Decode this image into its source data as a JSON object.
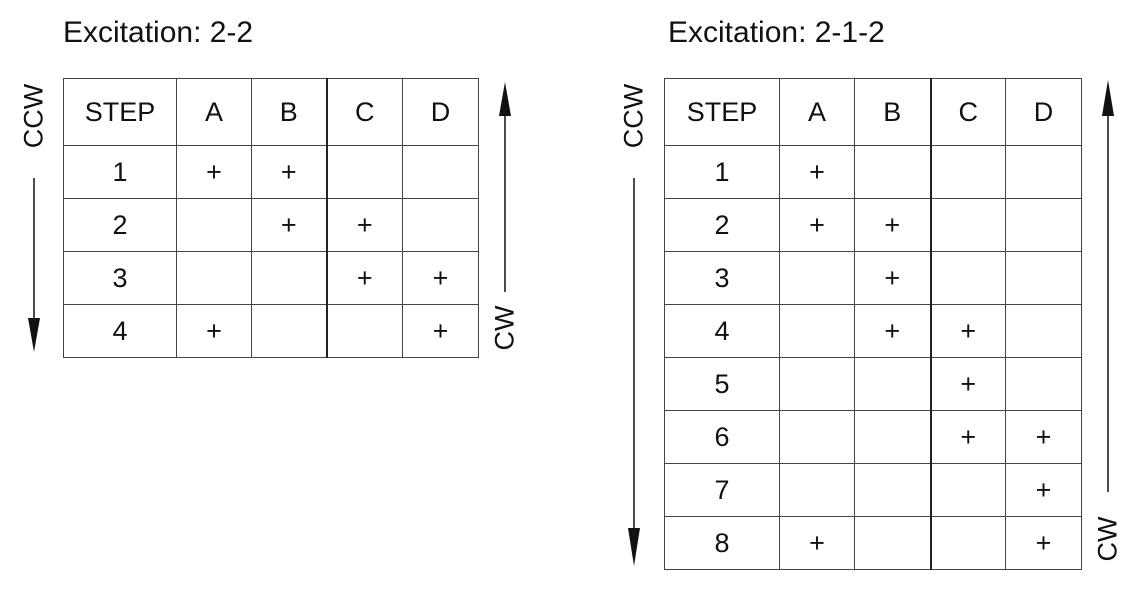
{
  "tables": [
    {
      "title": "Excitation: 2-2",
      "headers": [
        "STEP",
        "A",
        "B",
        "C",
        "D"
      ],
      "rows": [
        [
          "1",
          "+",
          "+",
          "",
          ""
        ],
        [
          "2",
          "",
          "+",
          "+",
          ""
        ],
        [
          "3",
          "",
          "",
          "+",
          "+"
        ],
        [
          "4",
          "+",
          "",
          "",
          "+"
        ]
      ],
      "left_label": "CCW",
      "right_label": "CW"
    },
    {
      "title": "Excitation: 2-1-2",
      "headers": [
        "STEP",
        "A",
        "B",
        "C",
        "D"
      ],
      "rows": [
        [
          "1",
          "+",
          "",
          "",
          ""
        ],
        [
          "2",
          "+",
          "+",
          "",
          ""
        ],
        [
          "3",
          "",
          "+",
          "",
          ""
        ],
        [
          "4",
          "",
          "+",
          "+",
          ""
        ],
        [
          "5",
          "",
          "",
          "+",
          ""
        ],
        [
          "6",
          "",
          "",
          "+",
          "+"
        ],
        [
          "7",
          "",
          "",
          "",
          "+"
        ],
        [
          "8",
          "+",
          "",
          "",
          "+"
        ]
      ],
      "left_label": "CCW",
      "right_label": "CW"
    }
  ]
}
